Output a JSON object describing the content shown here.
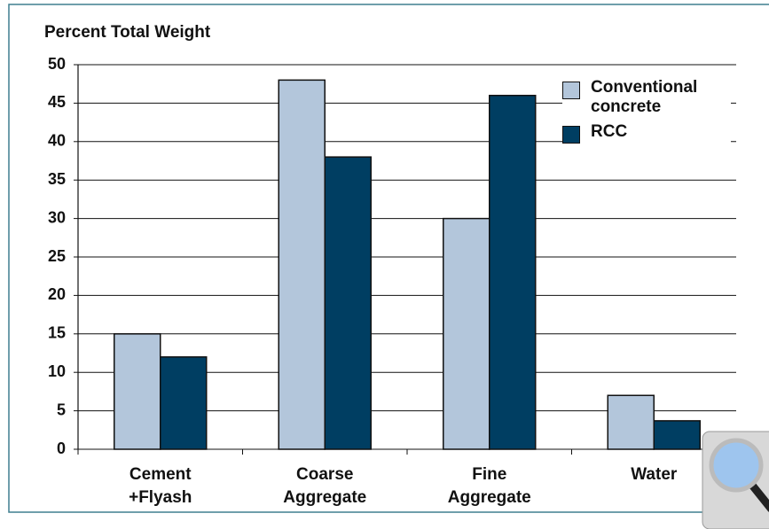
{
  "chart_data": {
    "type": "bar",
    "title": "Percent Total Weight",
    "categories": [
      [
        "Cement",
        "+Flyash"
      ],
      [
        "Coarse",
        "Aggregate"
      ],
      [
        "Fine",
        "Aggregate"
      ],
      [
        "Water"
      ]
    ],
    "series": [
      {
        "name": "Conventional concrete",
        "color": "#b3c6db",
        "values": [
          15,
          48,
          30,
          7
        ]
      },
      {
        "name": "RCC",
        "color": "#003e62",
        "values": [
          12,
          38,
          46,
          3.7
        ]
      }
    ],
    "ylim": [
      0,
      50
    ],
    "yticks": [
      0,
      5,
      10,
      15,
      20,
      25,
      30,
      35,
      40,
      45,
      50
    ],
    "grid": true,
    "legend": "top-right"
  }
}
